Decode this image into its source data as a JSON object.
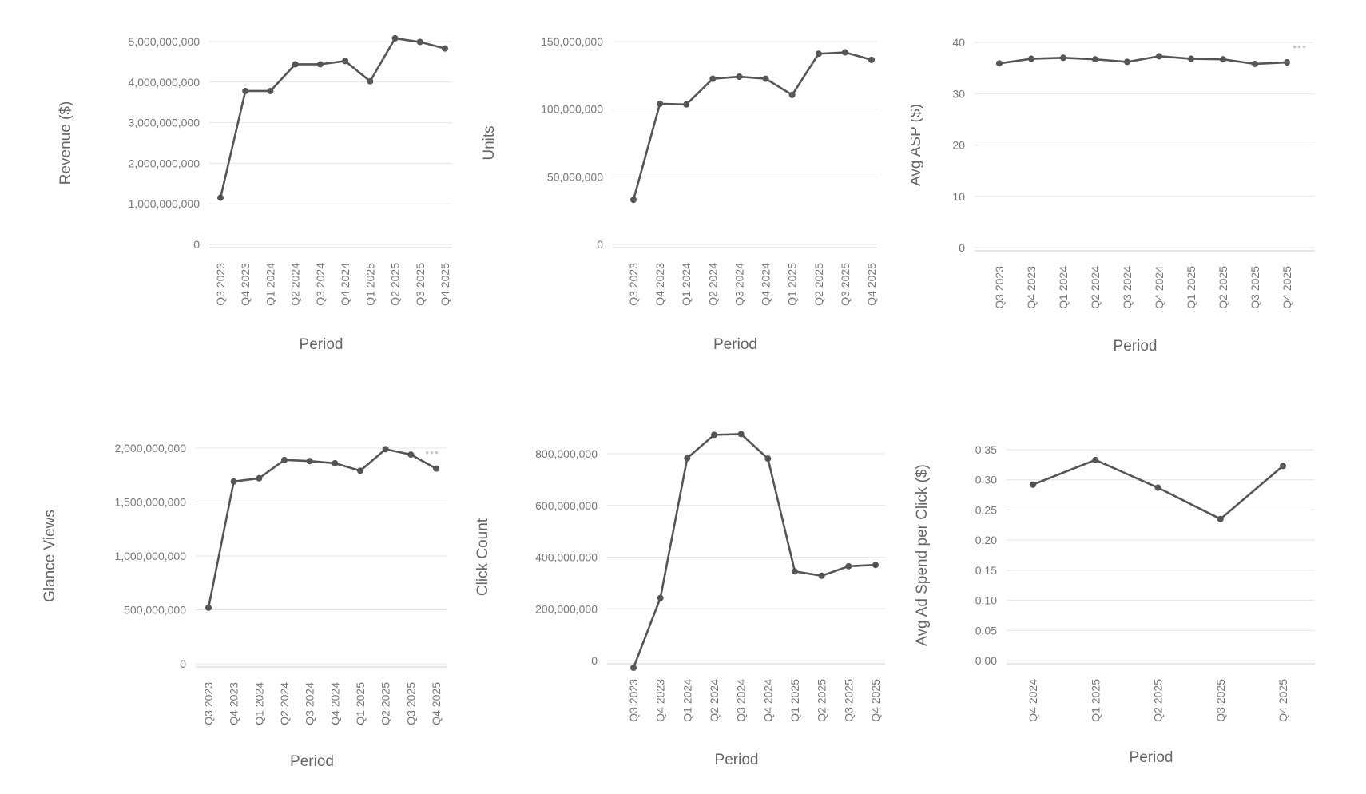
{
  "chart_data": [
    {
      "type": "line",
      "xlabel": "Period",
      "ylabel": "Revenue ($)",
      "categories": [
        "Q3 2023",
        "Q4 2023",
        "Q1 2024",
        "Q2 2024",
        "Q3 2024",
        "Q4 2024",
        "Q1 2025",
        "Q2 2025",
        "Q3 2025",
        "Q4 2025"
      ],
      "values": [
        1150000000,
        3780000000,
        3780000000,
        4440000000,
        4440000000,
        4520000000,
        4020000000,
        5080000000,
        4990000000,
        4830000000
      ],
      "yticks": [
        0,
        1000000000,
        2000000000,
        3000000000,
        4000000000,
        5000000000
      ],
      "ytick_labels": [
        "0",
        "1,000,000,000",
        "2,000,000,000",
        "3,000,000,000",
        "4,000,000,000",
        "5,000,000,000"
      ],
      "ylim": [
        0,
        5000000000
      ],
      "grid": true,
      "legend_marker": false
    },
    {
      "type": "line",
      "xlabel": "Period",
      "ylabel": "Units",
      "categories": [
        "Q3 2023",
        "Q4 2023",
        "Q1 2024",
        "Q2 2024",
        "Q3 2024",
        "Q4 2024",
        "Q1 2025",
        "Q2 2025",
        "Q3 2025",
        "Q4 2025"
      ],
      "values": [
        33000000,
        104000000,
        103500000,
        122500000,
        124000000,
        122500000,
        110500000,
        141000000,
        142000000,
        136500000
      ],
      "yticks": [
        0,
        50000000,
        100000000,
        150000000
      ],
      "ytick_labels": [
        "0",
        "50,000,000",
        "100,000,000",
        "150,000,000"
      ],
      "ylim": [
        0,
        150000000
      ],
      "grid": true,
      "legend_marker": false
    },
    {
      "type": "line",
      "xlabel": "Period",
      "ylabel": "Avg ASP ($)",
      "categories": [
        "Q3 2023",
        "Q4 2023",
        "Q1 2024",
        "Q2 2024",
        "Q3 2024",
        "Q4 2024",
        "Q1 2025",
        "Q2 2025",
        "Q3 2025",
        "Q4 2025"
      ],
      "values": [
        35.9,
        36.8,
        37.0,
        36.7,
        36.2,
        37.3,
        36.8,
        36.7,
        35.8,
        36.1
      ],
      "yticks": [
        0,
        10,
        20,
        30,
        40
      ],
      "ytick_labels": [
        "0",
        "10",
        "20",
        "30",
        "40"
      ],
      "ylim": [
        0,
        40
      ],
      "grid": true,
      "legend_marker": true
    },
    {
      "type": "line",
      "xlabel": "Period",
      "ylabel": "Glance Views",
      "categories": [
        "Q3 2023",
        "Q4 2023",
        "Q1 2024",
        "Q2 2024",
        "Q3 2024",
        "Q4 2024",
        "Q1 2025",
        "Q2 2025",
        "Q3 2025",
        "Q4 2025"
      ],
      "values": [
        520000000,
        1690000000,
        1720000000,
        1890000000,
        1880000000,
        1860000000,
        1790000000,
        1990000000,
        1940000000,
        1810000000
      ],
      "yticks": [
        0,
        500000000,
        1000000000,
        1500000000,
        2000000000
      ],
      "ytick_labels": [
        "0",
        "500,000,000",
        "1,000,000,000",
        "1,500,000,000",
        "2,000,000,000"
      ],
      "ylim": [
        0,
        2000000000
      ],
      "grid": true,
      "legend_marker": true
    },
    {
      "type": "line",
      "xlabel": "Period",
      "ylabel": "Click Count",
      "categories": [
        "Q3 2023",
        "Q4 2023",
        "Q1 2024",
        "Q2 2024",
        "Q3 2024",
        "Q4 2024",
        "Q1 2025",
        "Q2 2025",
        "Q3 2025",
        "Q4 2025"
      ],
      "values": [
        -28000000,
        242000000,
        783000000,
        873000000,
        876000000,
        781000000,
        345000000,
        328000000,
        365000000,
        370000000
      ],
      "yticks": [
        0,
        200000000,
        400000000,
        600000000,
        800000000
      ],
      "ytick_labels": [
        "0",
        "200,000,000",
        "400,000,000",
        "600,000,000",
        "800,000,000"
      ],
      "ylim": [
        0,
        800000000
      ],
      "grid": true,
      "legend_marker": false
    },
    {
      "type": "line",
      "xlabel": "Period",
      "ylabel": "Avg Ad Spend per Click ($)",
      "categories": [
        "Q4 2024",
        "Q1 2025",
        "Q2 2025",
        "Q3 2025",
        "Q4 2025"
      ],
      "values": [
        0.292,
        0.333,
        0.287,
        0.235,
        0.323
      ],
      "yticks": [
        0.0,
        0.05,
        0.1,
        0.15,
        0.2,
        0.25,
        0.3,
        0.35
      ],
      "ytick_labels": [
        "0.00",
        "0.05",
        "0.10",
        "0.15",
        "0.20",
        "0.25",
        "0.30",
        "0.35"
      ],
      "ylim": [
        0,
        0.35
      ],
      "grid": true,
      "legend_marker": false
    }
  ]
}
